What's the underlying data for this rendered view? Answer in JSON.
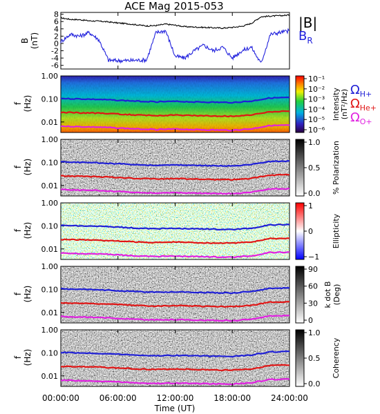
{
  "title": "ACE Mag 2015-053",
  "x_axis": {
    "label": "Time (UT)",
    "tick_labels": [
      "00:00:00",
      "06:00:00",
      "12:00:00",
      "18:00:00",
      "24:00:00"
    ],
    "range_hours": [
      0,
      24
    ]
  },
  "colors": {
    "B_total": "#000000",
    "B_R": "#2222dd",
    "H_plus": "#1f1fd6",
    "He_plus": "#e01515",
    "O_plus": "#e020e0"
  },
  "legends": {
    "B": {
      "total": "|B|",
      "radial_main": "B",
      "radial_sub": "R"
    },
    "cyclotron": [
      {
        "main": "Ω",
        "sub": "H+",
        "color": "#1f1fd6"
      },
      {
        "main": "Ω",
        "sub": "He+",
        "color": "#e01515"
      },
      {
        "main": "Ω",
        "sub": "O+",
        "color": "#e020e0"
      }
    ]
  },
  "chart_data": [
    {
      "type": "line",
      "panel": "B",
      "ylabel": "B",
      "yunit": "(nT)",
      "ylim": [
        -7,
        8.5
      ],
      "yticks": [
        "8",
        "6",
        "4",
        "2",
        "0",
        "-2",
        "-4",
        "-6"
      ],
      "x_hours": [
        0,
        1,
        2,
        3,
        4,
        5,
        6,
        7,
        8,
        9,
        10,
        11,
        12,
        13,
        14,
        15,
        16,
        17,
        18,
        19,
        20,
        21,
        22,
        23,
        24
      ],
      "series": [
        {
          "name": "|B|",
          "values": [
            7,
            6.6,
            6.5,
            6.2,
            6.1,
            5.9,
            5.6,
            5.4,
            5.1,
            4.8,
            4.9,
            5.3,
            5.0,
            4.6,
            4.5,
            4.4,
            4.3,
            4.2,
            4.4,
            4.7,
            5.5,
            7.3,
            7.5,
            7.6,
            7.8
          ]
        },
        {
          "name": "B_R",
          "values": [
            0.5,
            2.5,
            2.0,
            3.0,
            1.0,
            -4.6,
            -4.7,
            -4.7,
            -4.6,
            -4.5,
            3.0,
            3.5,
            -3.5,
            -4.0,
            -2.0,
            -0.5,
            -2.0,
            -1.0,
            -4.0,
            -2.0,
            -1.0,
            -5.5,
            2.5,
            3.0,
            3.5
          ]
        }
      ]
    },
    {
      "type": "heatmap",
      "panel": "intensity",
      "ylabel": "f",
      "yunit": "(Hz)",
      "yscale": "log",
      "ylim": [
        0.0035,
        1.0
      ],
      "yticks": [
        "1.00",
        "0.10",
        "0.01"
      ],
      "colorbar": {
        "label": "Intensity",
        "unit": "(nT²/Hz)",
        "ticks": [
          "10⁻¹",
          "10⁻²",
          "10⁻³",
          "10⁻⁴",
          "10⁻⁵",
          "10⁻⁶"
        ],
        "palette": "rainbow"
      }
    },
    {
      "type": "heatmap",
      "panel": "polarization",
      "ylabel": "f",
      "yunit": "(Hz)",
      "yscale": "log",
      "ylim": [
        0.0035,
        1.0
      ],
      "yticks": [
        "1.00",
        "0.10",
        "0.01"
      ],
      "colorbar": {
        "label": "% Polarization",
        "unit": "",
        "ticks": [
          "1.0",
          "0.5",
          "0.0"
        ],
        "palette": "gray"
      }
    },
    {
      "type": "heatmap",
      "panel": "ellipticity",
      "ylabel": "f",
      "yunit": "(Hz)",
      "yscale": "log",
      "ylim": [
        0.0035,
        1.0
      ],
      "yticks": [
        "1.00",
        "0.10",
        "0.01"
      ],
      "colorbar": {
        "label": "Ellipticity",
        "unit": "",
        "ticks": [
          "1",
          "0",
          "−1"
        ],
        "palette": "bwr"
      }
    },
    {
      "type": "heatmap",
      "panel": "kdotb",
      "ylabel": "f",
      "yunit": "(Hz)",
      "yscale": "log",
      "ylim": [
        0.0035,
        1.0
      ],
      "yticks": [
        "1.00",
        "0.10",
        "0.01"
      ],
      "colorbar": {
        "label": "k dot B",
        "unit": "(Deg)",
        "ticks": [
          "90",
          "60",
          "30",
          "0"
        ],
        "palette": "gray"
      }
    },
    {
      "type": "heatmap",
      "panel": "coherency",
      "ylabel": "f",
      "yunit": "(Hz)",
      "yscale": "log",
      "ylim": [
        0.0035,
        1.0
      ],
      "yticks": [
        "1.00",
        "0.10",
        "0.01"
      ],
      "colorbar": {
        "label": "Coherency",
        "unit": "",
        "ticks": [
          "1.0",
          "0.5",
          "0.0"
        ],
        "palette": "gray"
      }
    }
  ],
  "cyclotron_lines": {
    "x_hours": [
      0,
      2,
      4,
      6,
      8,
      10,
      12,
      14,
      16,
      18,
      20,
      22,
      24
    ],
    "H_plus_Hz": [
      0.105,
      0.1,
      0.095,
      0.088,
      0.08,
      0.075,
      0.078,
      0.075,
      0.072,
      0.07,
      0.08,
      0.11,
      0.115
    ],
    "He_plus_Hz": [
      0.026,
      0.025,
      0.024,
      0.022,
      0.02,
      0.019,
      0.02,
      0.019,
      0.018,
      0.018,
      0.02,
      0.028,
      0.029
    ],
    "O_plus_Hz": [
      0.0066,
      0.0062,
      0.006,
      0.0055,
      0.005,
      0.0047,
      0.0049,
      0.0047,
      0.0045,
      0.0044,
      0.005,
      0.007,
      0.0072
    ]
  }
}
